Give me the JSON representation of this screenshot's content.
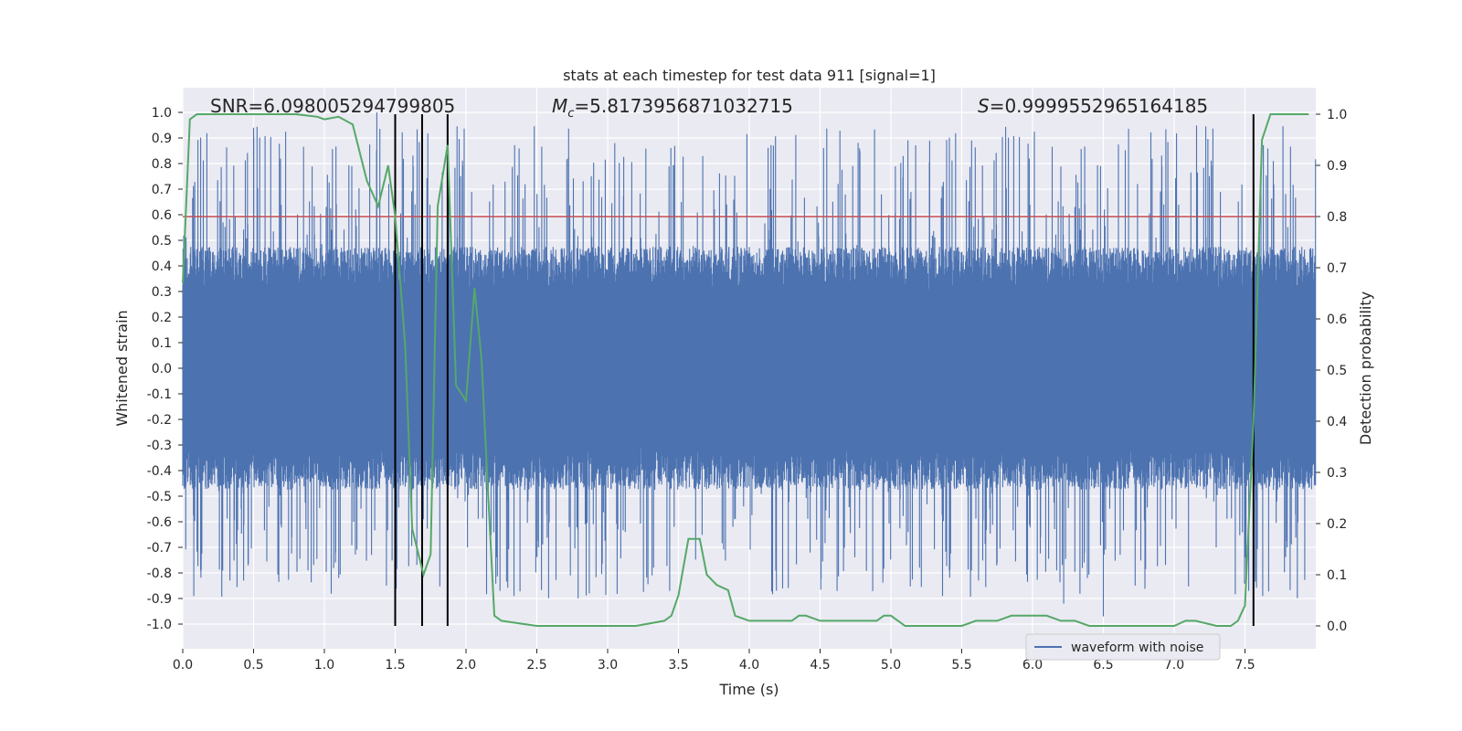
{
  "chart_data": {
    "type": "line",
    "title": "stats at each timestep for test data 911 [signal=1]",
    "xlabel": "Time (s)",
    "ylabel": "Whitened strain",
    "y2label": "Detection probability",
    "xlim": [
      0,
      8
    ],
    "ylim": [
      -1.1,
      1.1
    ],
    "y2lim": [
      -0.05,
      1.05
    ],
    "xticks": [
      "0.0",
      "0.5",
      "1.0",
      "1.5",
      "2.0",
      "2.5",
      "3.0",
      "3.5",
      "4.0",
      "4.5",
      "5.0",
      "5.5",
      "6.0",
      "6.5",
      "7.0",
      "7.5"
    ],
    "yticks": [
      "1.0",
      "0.9",
      "0.8",
      "0.7",
      "0.6",
      "0.5",
      "0.4",
      "0.3",
      "0.2",
      "0.1",
      "0.0",
      "-0.1",
      "-0.2",
      "-0.3",
      "-0.4",
      "-0.5",
      "-0.6",
      "-0.7",
      "-0.8",
      "-0.9",
      "-1.0"
    ],
    "y2ticks": [
      "1.0",
      "0.9",
      "0.8",
      "0.7",
      "0.6",
      "0.5",
      "0.4",
      "0.3",
      "0.2",
      "0.1",
      "0.0"
    ],
    "grid": true,
    "annotations": {
      "snr": "SNR=6.098005294799805",
      "mc_symbol": "M",
      "mc_sub": "c",
      "mc_value": "=5.8173956871032715",
      "s_symbol": "S",
      "s_value": "=0.9999552965164185"
    },
    "legend": {
      "label": "waveform with noise",
      "position": "lower-right"
    },
    "threshold": {
      "value": 0.8,
      "axis": "right",
      "color": "#c44e52"
    },
    "vertical_markers": [
      1.5,
      1.69,
      1.87,
      7.56
    ],
    "waveform": {
      "name": "waveform with noise",
      "color": "#4c72b0",
      "dense_amplitude": 0.38,
      "spike_max": 1.0,
      "spike_min": -1.0
    },
    "probability_series": {
      "name": "Detection probability",
      "color": "#55a868",
      "t": [
        0.0,
        0.05,
        0.1,
        0.2,
        0.5,
        0.8,
        0.95,
        1.0,
        1.1,
        1.2,
        1.3,
        1.38,
        1.45,
        1.5,
        1.57,
        1.62,
        1.7,
        1.75,
        1.8,
        1.87,
        1.93,
        2.0,
        2.06,
        2.11,
        2.15,
        2.2,
        2.25,
        2.5,
        2.8,
        3.2,
        3.4,
        3.45,
        3.5,
        3.57,
        3.65,
        3.7,
        3.77,
        3.85,
        3.9,
        4.0,
        4.1,
        4.2,
        4.3,
        4.35,
        4.4,
        4.5,
        4.6,
        4.7,
        4.9,
        4.95,
        5.0,
        5.05,
        5.1,
        5.3,
        5.5,
        5.6,
        5.65,
        5.75,
        5.85,
        6.0,
        6.05,
        6.1,
        6.2,
        6.3,
        6.4,
        6.6,
        7.0,
        7.08,
        7.15,
        7.3,
        7.4,
        7.45,
        7.5,
        7.56,
        7.62,
        7.68,
        7.75,
        7.95
      ],
      "p": [
        0.67,
        0.99,
        1.0,
        1.0,
        1.0,
        1.0,
        0.995,
        0.99,
        0.995,
        0.98,
        0.87,
        0.82,
        0.9,
        0.8,
        0.55,
        0.19,
        0.1,
        0.14,
        0.82,
        0.94,
        0.47,
        0.44,
        0.66,
        0.52,
        0.29,
        0.02,
        0.01,
        0.0,
        0.0,
        0.0,
        0.01,
        0.02,
        0.06,
        0.17,
        0.17,
        0.1,
        0.08,
        0.07,
        0.02,
        0.01,
        0.01,
        0.01,
        0.01,
        0.02,
        0.02,
        0.01,
        0.01,
        0.01,
        0.01,
        0.02,
        0.02,
        0.01,
        0.0,
        0.0,
        0.0,
        0.01,
        0.01,
        0.01,
        0.02,
        0.02,
        0.02,
        0.02,
        0.01,
        0.01,
        0.0,
        0.0,
        0.0,
        0.01,
        0.01,
        0.0,
        0.0,
        0.01,
        0.04,
        0.4,
        0.95,
        1.0,
        1.0,
        1.0
      ]
    }
  }
}
